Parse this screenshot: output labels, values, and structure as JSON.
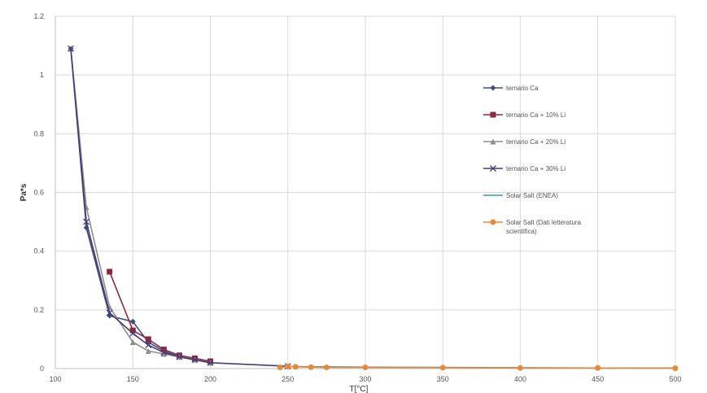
{
  "chart_data": {
    "type": "line",
    "title": "",
    "xlabel": "T[°C]",
    "ylabel": "Pa*s",
    "xlim": [
      100,
      500
    ],
    "ylim": [
      0,
      1.2
    ],
    "x_ticks": [
      "100",
      "150",
      "200",
      "250",
      "300",
      "350",
      "400",
      "450",
      "500"
    ],
    "y_ticks": [
      "0",
      "0.2",
      "0.4",
      "0.6",
      "0.8",
      "1",
      "1.2"
    ],
    "grid": true,
    "legend_position": "right",
    "series": [
      {
        "name": "ternario Ca",
        "color": "#3b4f7a",
        "marker": "diamond",
        "points": [
          [
            110,
            1.09
          ],
          [
            120,
            0.48
          ],
          [
            135,
            0.18
          ],
          [
            150,
            0.16
          ],
          [
            160,
            0.09
          ],
          [
            170,
            0.06
          ],
          [
            180,
            0.04
          ],
          [
            190,
            0.03
          ],
          [
            200,
            0.02
          ]
        ]
      },
      {
        "name": "ternario Ca + 10% Li",
        "color": "#8b2a3e",
        "marker": "square",
        "points": [
          [
            135,
            0.33
          ],
          [
            150,
            0.13
          ],
          [
            160,
            0.1
          ],
          [
            170,
            0.065
          ],
          [
            180,
            0.045
          ],
          [
            190,
            0.035
          ],
          [
            200,
            0.025
          ]
        ]
      },
      {
        "name": "ternario Ca + 20% Li",
        "color": "#8d8d8d",
        "marker": "triangle",
        "points": [
          [
            110,
            1.09
          ],
          [
            120,
            0.55
          ],
          [
            135,
            0.21
          ],
          [
            150,
            0.09
          ],
          [
            160,
            0.06
          ],
          [
            170,
            0.05
          ],
          [
            180,
            0.04
          ],
          [
            190,
            0.03
          ],
          [
            200,
            0.02
          ]
        ]
      },
      {
        "name": "ternario Ca + 30% Li",
        "color": "#4a3a78",
        "marker": "x",
        "points": [
          [
            110,
            1.09
          ],
          [
            120,
            0.5
          ],
          [
            135,
            0.19
          ],
          [
            150,
            0.12
          ],
          [
            160,
            0.08
          ],
          [
            170,
            0.055
          ],
          [
            180,
            0.04
          ],
          [
            190,
            0.03
          ],
          [
            200,
            0.02
          ],
          [
            250,
            0.008
          ]
        ]
      },
      {
        "name": "Solar Salt (ENEA)",
        "color": "#2e9bc0",
        "marker": "none",
        "points": [
          [
            250,
            0.007
          ],
          [
            300,
            0.005
          ],
          [
            350,
            0.004
          ],
          [
            400,
            0.003
          ],
          [
            450,
            0.002
          ],
          [
            500,
            0.002
          ]
        ]
      },
      {
        "name": "Solar Salt (Dati letteratura scientifica)",
        "color": "#e58a3a",
        "marker": "circle",
        "points": [
          [
            245,
            0.004
          ],
          [
            250,
            0.007
          ],
          [
            255,
            0.006
          ],
          [
            265,
            0.005
          ],
          [
            275,
            0.004
          ],
          [
            300,
            0.004
          ],
          [
            350,
            0.003
          ],
          [
            400,
            0.002
          ],
          [
            450,
            0.002
          ],
          [
            500,
            0.001
          ]
        ]
      }
    ]
  }
}
